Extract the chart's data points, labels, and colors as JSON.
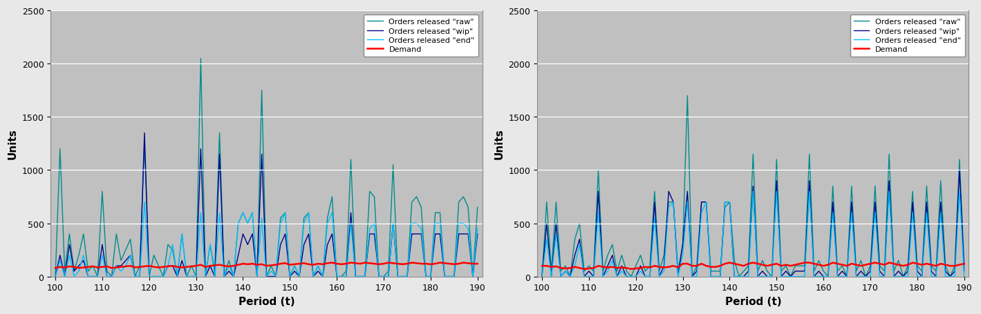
{
  "xlim": [
    99,
    191
  ],
  "ylim": [
    0,
    2500
  ],
  "xlabel": "Period (t)",
  "ylabel": "Units",
  "yticks": [
    0,
    500,
    1000,
    1500,
    2000,
    2500
  ],
  "xticks": [
    100,
    110,
    120,
    130,
    140,
    150,
    160,
    170,
    180,
    190
  ],
  "legend_labels": [
    "Orders released \"raw\"",
    "Orders released \"wip\"",
    "Orders released \"end\"",
    "Demand"
  ],
  "legend_colors": [
    "#008B8B",
    "#00008B",
    "#00BFFF",
    "#FF0000"
  ],
  "bg_color": "#C0C0C0",
  "fig_bg_color": "#E8E8E8",
  "grid_color": "#FFFFFF",
  "left_raw": [
    0,
    1200,
    50,
    400,
    50,
    200,
    400,
    50,
    100,
    0,
    800,
    50,
    0,
    400,
    150,
    250,
    350,
    0,
    100,
    1250,
    0,
    200,
    100,
    0,
    300,
    250,
    0,
    400,
    0,
    100,
    0,
    2050,
    0,
    300,
    50,
    1350,
    0,
    150,
    0,
    500,
    600,
    500,
    600,
    0,
    1750,
    0,
    100,
    0,
    550,
    600,
    0,
    100,
    0,
    550,
    600,
    0,
    100,
    0,
    550,
    750,
    0,
    0,
    50,
    1100,
    0,
    0,
    0,
    800,
    750,
    0,
    0,
    50,
    1050,
    0,
    0,
    0,
    700,
    750,
    650,
    0,
    0,
    600,
    600,
    0,
    0,
    0,
    700,
    750,
    650,
    0,
    650
  ],
  "left_wip": [
    0,
    200,
    0,
    300,
    50,
    100,
    150,
    0,
    0,
    0,
    300,
    0,
    0,
    100,
    100,
    150,
    200,
    0,
    0,
    1350,
    0,
    0,
    0,
    0,
    100,
    100,
    0,
    150,
    0,
    0,
    0,
    1200,
    0,
    100,
    0,
    1150,
    0,
    50,
    0,
    200,
    400,
    300,
    400,
    0,
    1150,
    0,
    0,
    0,
    300,
    400,
    0,
    50,
    0,
    300,
    400,
    0,
    50,
    0,
    300,
    400,
    0,
    0,
    0,
    600,
    0,
    0,
    0,
    400,
    400,
    0,
    0,
    0,
    500,
    0,
    0,
    0,
    400,
    400,
    400,
    0,
    0,
    400,
    400,
    0,
    0,
    0,
    400,
    400,
    400,
    0,
    400
  ],
  "left_end": [
    0,
    150,
    0,
    200,
    0,
    50,
    200,
    0,
    0,
    0,
    200,
    0,
    0,
    100,
    50,
    100,
    200,
    0,
    0,
    700,
    0,
    0,
    0,
    0,
    100,
    300,
    0,
    400,
    0,
    0,
    0,
    600,
    0,
    300,
    0,
    600,
    0,
    100,
    0,
    500,
    600,
    500,
    600,
    0,
    550,
    0,
    50,
    0,
    500,
    600,
    0,
    100,
    0,
    500,
    600,
    0,
    100,
    0,
    500,
    600,
    0,
    0,
    0,
    500,
    0,
    0,
    0,
    450,
    500,
    0,
    0,
    0,
    500,
    0,
    0,
    0,
    500,
    500,
    450,
    0,
    0,
    500,
    500,
    0,
    0,
    0,
    500,
    500,
    450,
    0,
    450
  ],
  "left_demand": [
    80,
    90,
    85,
    95,
    90,
    80,
    85,
    90,
    95,
    85,
    90,
    95,
    80,
    85,
    90,
    95,
    100,
    85,
    90,
    95,
    100,
    90,
    85,
    90,
    95,
    100,
    90,
    85,
    90,
    95,
    100,
    110,
    90,
    100,
    105,
    110,
    100,
    95,
    100,
    110,
    120,
    115,
    120,
    110,
    115,
    100,
    105,
    110,
    120,
    125,
    110,
    115,
    120,
    125,
    115,
    110,
    120,
    115,
    125,
    130,
    120,
    115,
    120,
    130,
    125,
    120,
    130,
    125,
    120,
    115,
    120,
    130,
    125,
    120,
    115,
    120,
    130,
    125,
    120,
    120,
    115,
    120,
    130,
    125,
    120,
    115,
    120,
    130,
    125,
    120,
    120
  ],
  "right_raw": [
    0,
    700,
    50,
    700,
    50,
    100,
    0,
    350,
    500,
    50,
    100,
    50,
    1000,
    50,
    200,
    300,
    50,
    200,
    50,
    0,
    100,
    200,
    50,
    100,
    800,
    50,
    200,
    700,
    700,
    50,
    300,
    1700,
    0,
    100,
    700,
    700,
    50,
    50,
    50,
    650,
    700,
    150,
    0,
    50,
    100,
    1150,
    50,
    150,
    50,
    0,
    1100,
    50,
    100,
    0,
    100,
    100,
    100,
    1150,
    50,
    150,
    50,
    0,
    850,
    50,
    100,
    0,
    850,
    50,
    150,
    0,
    100,
    850,
    100,
    50,
    1150,
    50,
    150,
    0,
    100,
    800,
    100,
    50,
    850,
    100,
    50,
    900,
    100,
    0,
    100,
    1100,
    100
  ],
  "right_wip": [
    0,
    500,
    0,
    500,
    0,
    50,
    0,
    200,
    350,
    0,
    50,
    0,
    800,
    0,
    100,
    200,
    0,
    100,
    0,
    0,
    0,
    100,
    0,
    0,
    700,
    0,
    100,
    800,
    700,
    0,
    300,
    800,
    0,
    50,
    700,
    700,
    0,
    0,
    0,
    700,
    700,
    0,
    0,
    0,
    50,
    850,
    0,
    50,
    0,
    0,
    900,
    0,
    50,
    0,
    50,
    50,
    50,
    900,
    0,
    50,
    0,
    0,
    700,
    0,
    50,
    0,
    700,
    0,
    50,
    0,
    50,
    700,
    50,
    0,
    900,
    0,
    50,
    0,
    50,
    700,
    50,
    0,
    700,
    50,
    0,
    700,
    50,
    0,
    50,
    1000,
    50
  ],
  "right_end": [
    0,
    350,
    0,
    400,
    0,
    50,
    0,
    100,
    300,
    0,
    0,
    0,
    600,
    0,
    50,
    150,
    0,
    50,
    0,
    0,
    0,
    50,
    0,
    0,
    550,
    0,
    50,
    650,
    700,
    0,
    200,
    700,
    0,
    0,
    600,
    700,
    0,
    0,
    0,
    700,
    700,
    0,
    0,
    0,
    0,
    800,
    0,
    0,
    0,
    0,
    800,
    0,
    0,
    0,
    0,
    0,
    0,
    800,
    0,
    0,
    0,
    0,
    600,
    0,
    0,
    0,
    600,
    0,
    0,
    0,
    0,
    600,
    0,
    0,
    800,
    0,
    0,
    0,
    0,
    600,
    0,
    0,
    600,
    0,
    0,
    600,
    0,
    0,
    0,
    800,
    0
  ],
  "right_demand": [
    100,
    100,
    90,
    95,
    80,
    75,
    80,
    90,
    80,
    70,
    75,
    80,
    100,
    90,
    85,
    90,
    80,
    85,
    80,
    70,
    75,
    80,
    90,
    85,
    100,
    90,
    85,
    90,
    100,
    85,
    120,
    120,
    100,
    100,
    120,
    100,
    90,
    90,
    100,
    120,
    130,
    120,
    110,
    100,
    120,
    130,
    120,
    110,
    100,
    110,
    120,
    100,
    110,
    100,
    110,
    120,
    130,
    130,
    120,
    110,
    100,
    110,
    130,
    120,
    110,
    100,
    120,
    110,
    100,
    110,
    120,
    130,
    120,
    110,
    130,
    120,
    110,
    100,
    110,
    130,
    120,
    110,
    120,
    110,
    100,
    120,
    110,
    100,
    100,
    110,
    120
  ]
}
